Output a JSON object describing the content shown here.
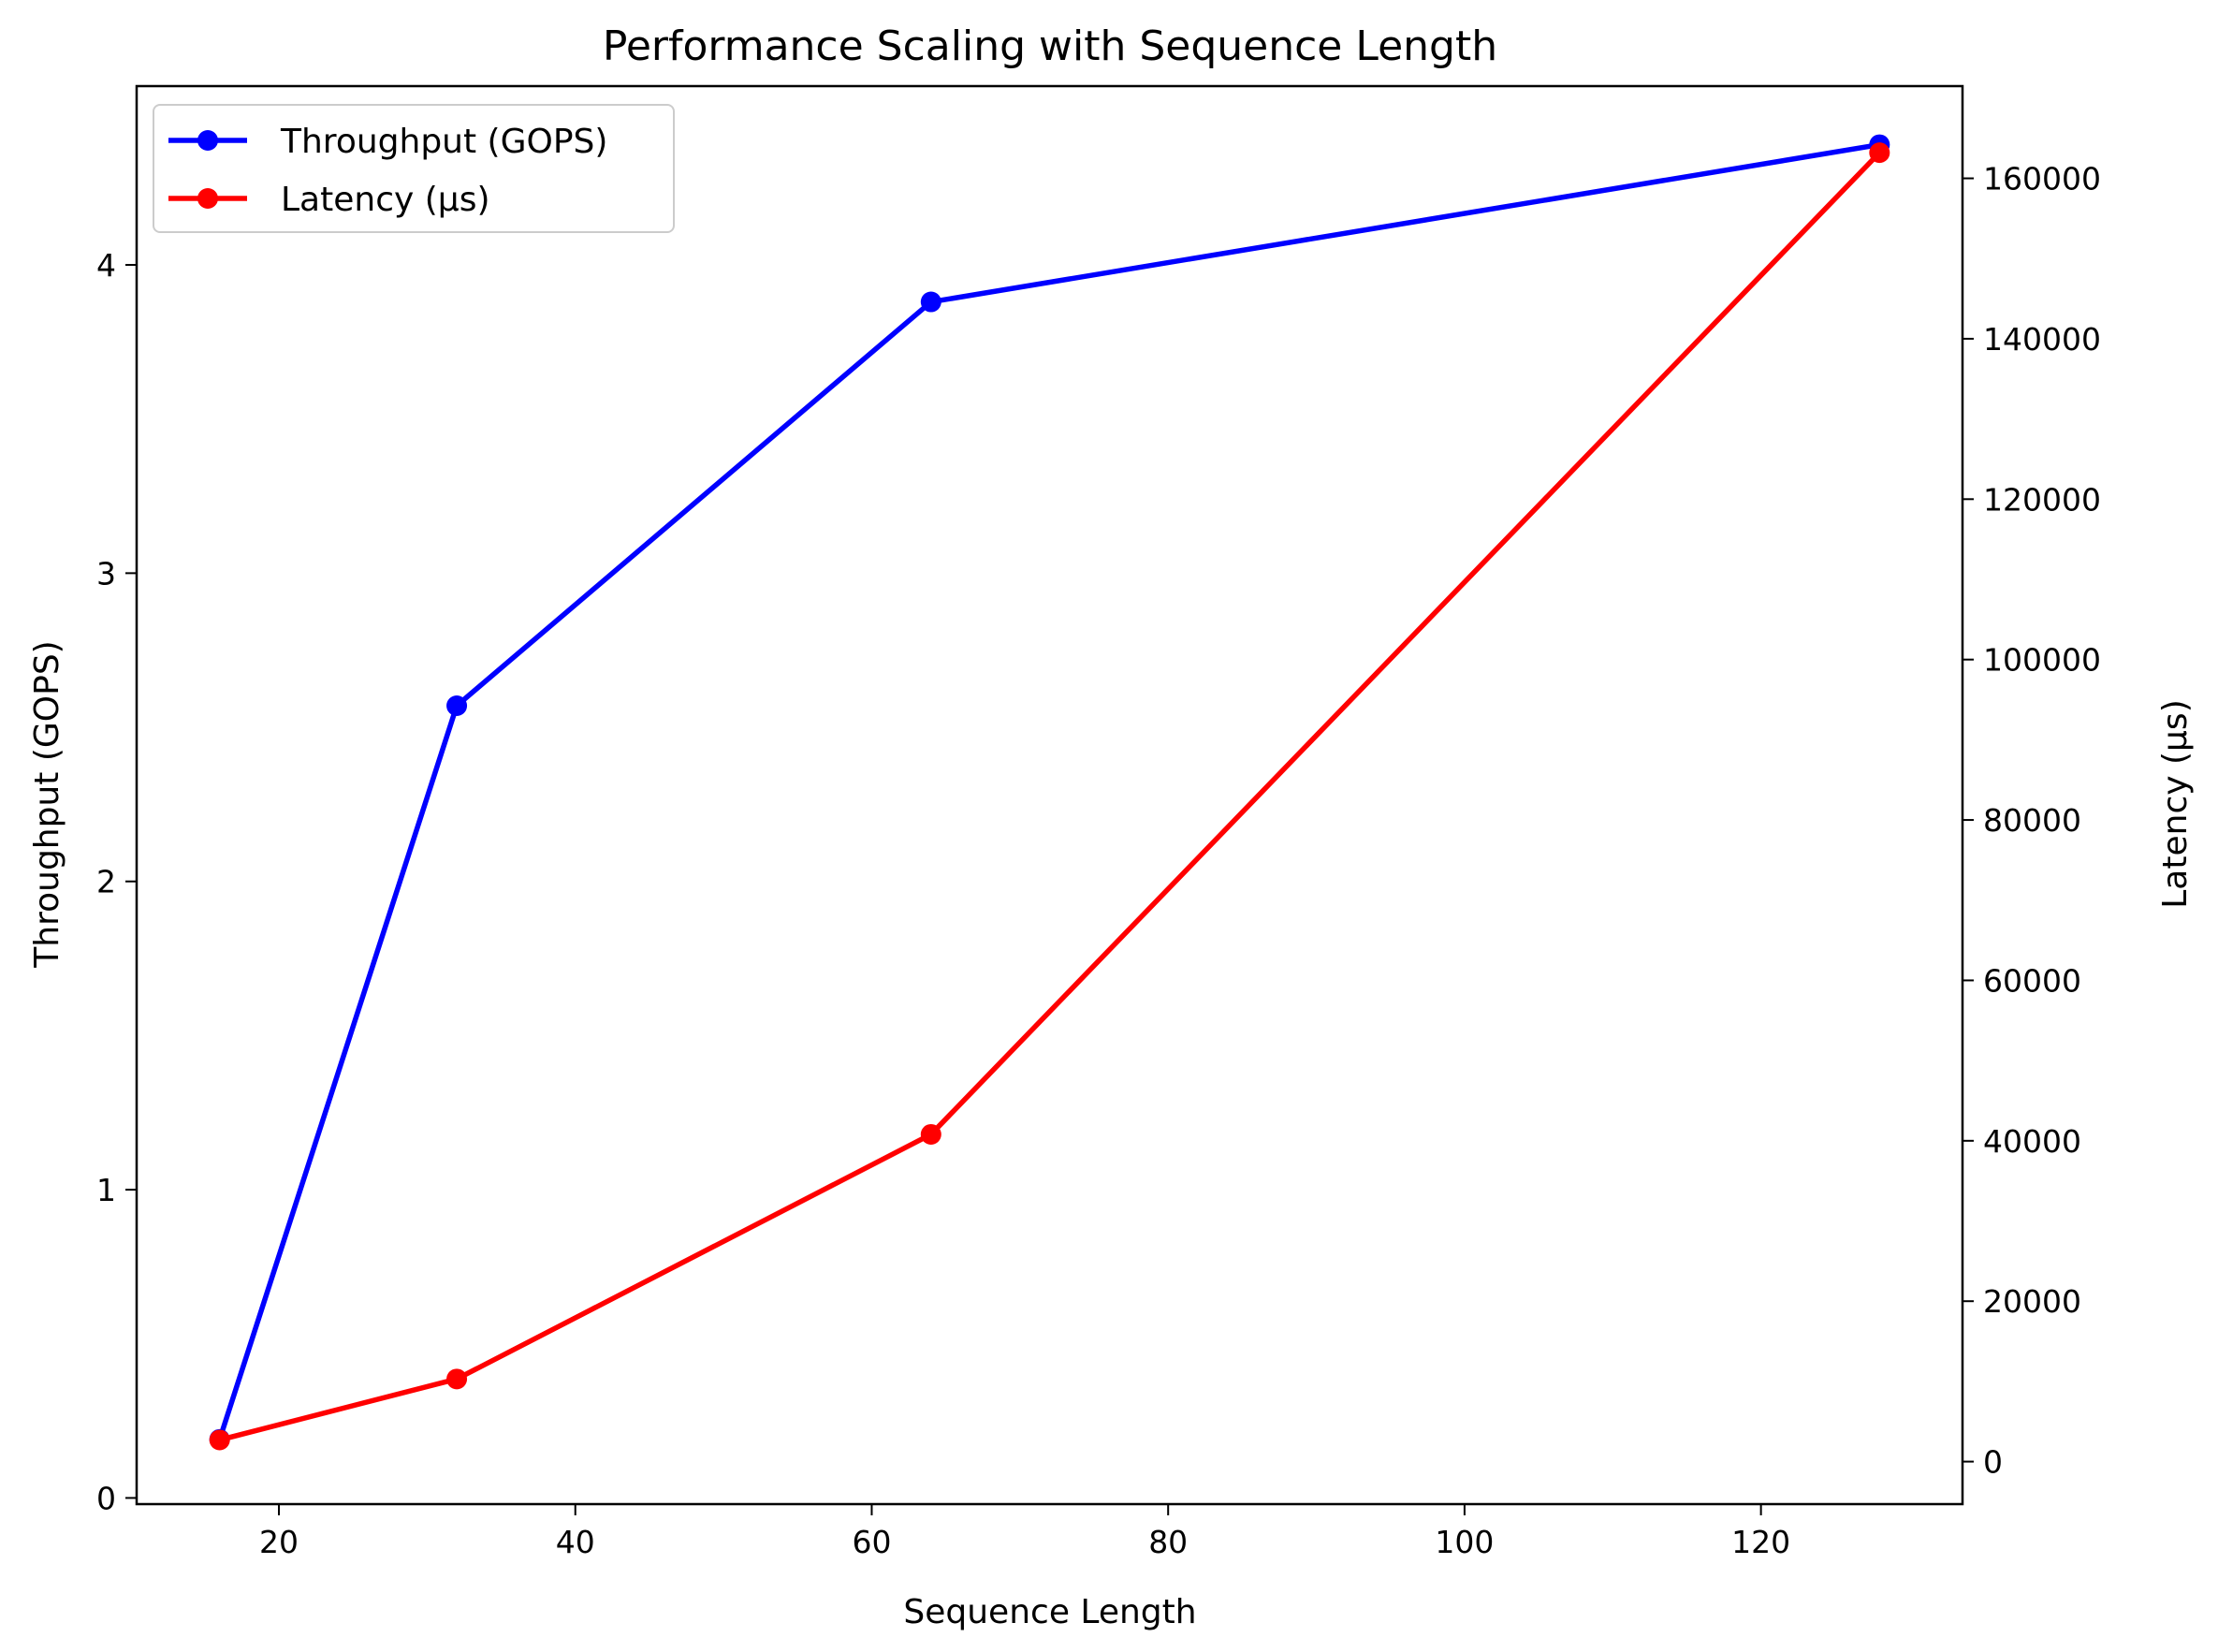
{
  "chart_data": {
    "type": "line",
    "title": "Performance Scaling with Sequence Length",
    "xlabel": "Sequence Length",
    "ylabel_left": "Throughput (GOPS)",
    "ylabel_right": "Latency (µs)",
    "x": [
      16,
      32,
      64,
      128
    ],
    "xlim": [
      10.4,
      133.6
    ],
    "ylim_left": [
      -0.02,
      4.58
    ],
    "ylim_right": [
      -5300,
      171500
    ],
    "xticks": [
      20,
      40,
      60,
      80,
      100,
      120
    ],
    "xtick_labels": [
      "20",
      "40",
      "60",
      "80",
      "100",
      "120"
    ],
    "yticks_left": [
      0,
      1,
      2,
      3,
      4
    ],
    "ytick_labels_left": [
      "0",
      "1",
      "2",
      "3",
      "4"
    ],
    "yticks_right": [
      0,
      20000,
      40000,
      60000,
      80000,
      100000,
      120000,
      140000,
      160000
    ],
    "ytick_labels_right": [
      "0",
      "20000",
      "40000",
      "60000",
      "80000",
      "100000",
      "120000",
      "140000",
      "160000"
    ],
    "series": [
      {
        "name": "Throughput (GOPS)",
        "axis": "left",
        "color": "#0000ff",
        "marker": "circle",
        "values": [
          0.19,
          2.57,
          3.88,
          4.39
        ]
      },
      {
        "name": "Latency (µs)",
        "axis": "right",
        "color": "#ff0000",
        "marker": "circle",
        "values": [
          2700,
          10300,
          40800,
          163200
        ]
      }
    ],
    "legend": {
      "position": "top-left"
    },
    "grid": false
  }
}
